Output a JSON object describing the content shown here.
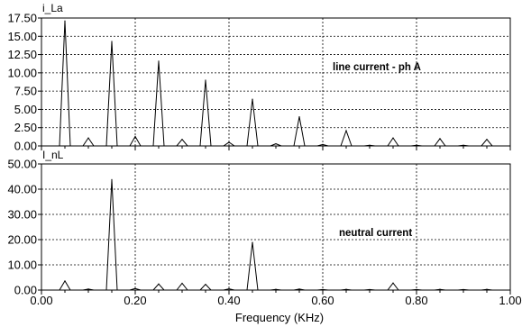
{
  "chart_data": [
    {
      "type": "line",
      "ylabel": "i_La",
      "annotation": "line current - ph A",
      "ylim": [
        0,
        17.5
      ],
      "yticks": [
        "17.50",
        "15.00",
        "12.50",
        "10.00",
        "7.50",
        "5.00",
        "2.50",
        "0.00"
      ],
      "ytick_values": [
        17.5,
        15,
        12.5,
        10,
        7.5,
        5,
        2.5,
        0
      ],
      "xlim": [
        0,
        1
      ],
      "grid": true,
      "series": [
        {
          "x": [
            0.05,
            0.1,
            0.15,
            0.2,
            0.25,
            0.3,
            0.35,
            0.4,
            0.45,
            0.5,
            0.55,
            0.6,
            0.65,
            0.7,
            0.75,
            0.8,
            0.85,
            0.9,
            0.95
          ],
          "values": [
            17.1,
            1.1,
            14.3,
            1.3,
            11.6,
            0.9,
            9.0,
            0.5,
            6.4,
            0.3,
            4.0,
            0.2,
            2.1,
            0.1,
            1.1,
            0.1,
            1.0,
            0.1,
            0.9
          ]
        }
      ]
    },
    {
      "type": "line",
      "ylabel": "I_nL",
      "annotation": "neutral current",
      "ylim": [
        0,
        50
      ],
      "yticks": [
        "50.00",
        "40.00",
        "30.00",
        "20.00",
        "10.00",
        "0.00"
      ],
      "ytick_values": [
        50,
        40,
        30,
        20,
        10,
        0
      ],
      "xlim": [
        0,
        1
      ],
      "xticks": [
        "0.00",
        "0.20",
        "0.40",
        "0.60",
        "0.80",
        "1.00"
      ],
      "xtick_values": [
        0,
        0.2,
        0.4,
        0.6,
        0.8,
        1.0
      ],
      "xlabel": "Frequency (KHz)",
      "grid": true,
      "series": [
        {
          "x": [
            0.05,
            0.1,
            0.15,
            0.2,
            0.25,
            0.3,
            0.35,
            0.4,
            0.45,
            0.5,
            0.55,
            0.6,
            0.65,
            0.7,
            0.75,
            0.8,
            0.85,
            0.9,
            0.95
          ],
          "values": [
            3.6,
            0.4,
            43.8,
            0.6,
            2.4,
            2.7,
            2.3,
            0.5,
            18.9,
            0.3,
            0.4,
            0.2,
            0.3,
            0.2,
            2.8,
            0.2,
            0.3,
            0.2,
            0.3
          ]
        }
      ]
    }
  ]
}
